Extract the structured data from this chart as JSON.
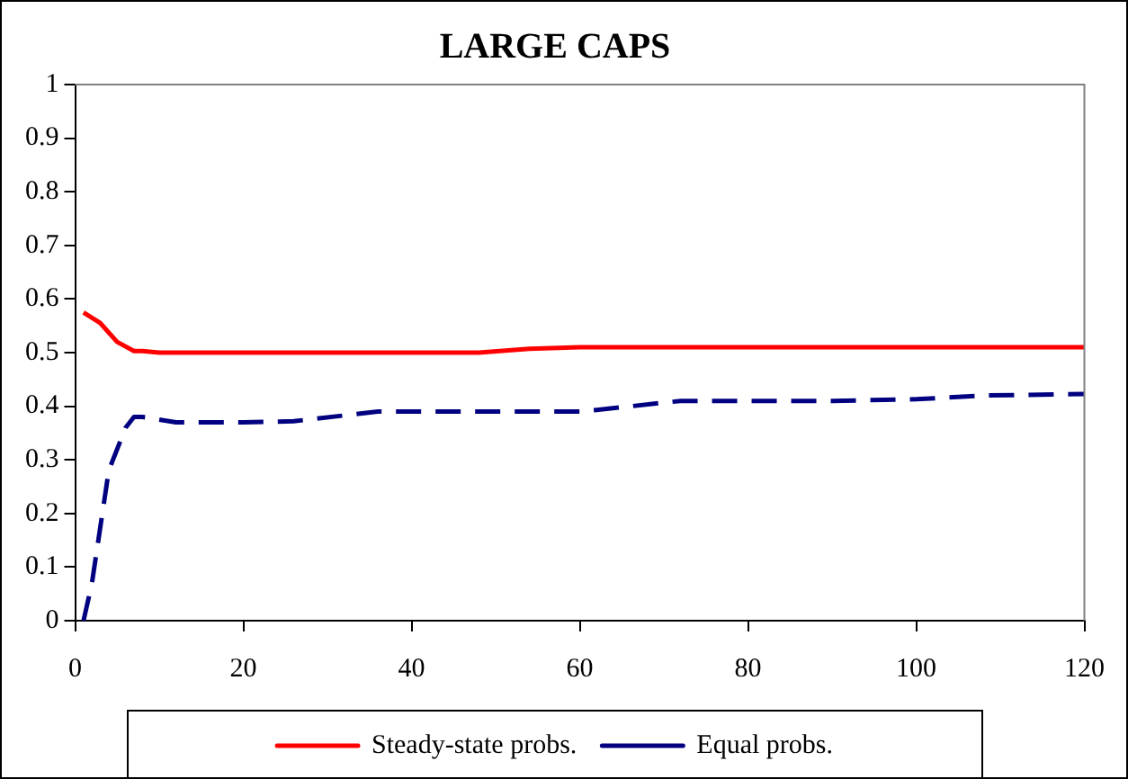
{
  "chart_data": {
    "type": "line",
    "title": "LARGE CAPS",
    "xlim": [
      0,
      120
    ],
    "xticks": [
      0,
      20,
      40,
      60,
      80,
      100,
      120
    ],
    "ylim": [
      0,
      1
    ],
    "yticks": [
      0,
      0.1,
      0.2,
      0.3,
      0.4,
      0.5,
      0.6,
      0.7,
      0.8,
      0.9,
      1
    ],
    "grid": false,
    "legend": "bottom",
    "marker": "none",
    "series": [
      {
        "name": "Steady-state probs.",
        "color": "#ff0000",
        "line_style": "solid",
        "x": [
          1,
          3,
          5,
          7,
          8,
          10,
          48,
          54,
          60,
          120
        ],
        "values": [
          0.575,
          0.555,
          0.52,
          0.503,
          0.503,
          0.5,
          0.5,
          0.507,
          0.51,
          0.51
        ]
      },
      {
        "name": "Equal probs.",
        "color": "#000080",
        "line_style": "dashed",
        "x": [
          1,
          2,
          4,
          6,
          7,
          8,
          12,
          20,
          26,
          36,
          48,
          60,
          62,
          72,
          90,
          100,
          108,
          120
        ],
        "values": [
          0,
          0.07,
          0.28,
          0.36,
          0.38,
          0.38,
          0.37,
          0.37,
          0.372,
          0.39,
          0.39,
          0.39,
          0.393,
          0.41,
          0.41,
          0.413,
          0.42,
          0.423
        ]
      }
    ]
  }
}
